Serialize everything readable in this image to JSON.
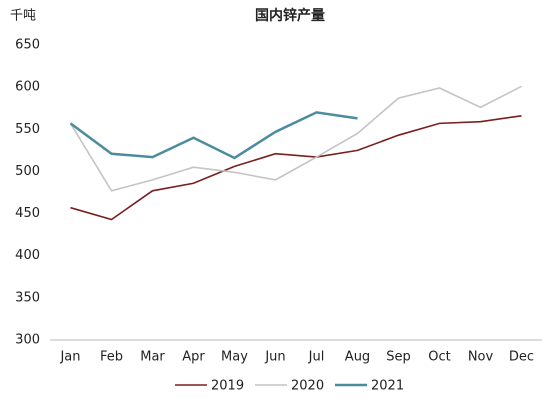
{
  "chart_data": {
    "type": "line",
    "title": "国内锌产量",
    "y_label": "千吨",
    "categories": [
      "Jan",
      "Feb",
      "Mar",
      "Apr",
      "May",
      "Jun",
      "Jul",
      "Aug",
      "Sep",
      "Oct",
      "Nov",
      "Dec"
    ],
    "series": [
      {
        "name": "2019",
        "color": "#7a1f1f",
        "values": [
          457,
          443,
          477,
          486,
          506,
          521,
          517,
          525,
          543,
          557,
          559,
          566
        ]
      },
      {
        "name": "2020",
        "color": "#c4c4c4",
        "values": [
          557,
          477,
          490,
          505,
          499,
          490,
          517,
          545,
          587,
          599,
          576,
          601
        ]
      },
      {
        "name": "2021",
        "color": "#4a8c9e",
        "values": [
          557,
          521,
          517,
          540,
          516,
          547,
          570,
          563,
          null,
          null,
          null,
          null
        ]
      }
    ],
    "ylim": [
      300,
      650
    ],
    "yticks": [
      300,
      350,
      400,
      450,
      500,
      550,
      600,
      650
    ],
    "grid": false,
    "legend": "bottom"
  }
}
